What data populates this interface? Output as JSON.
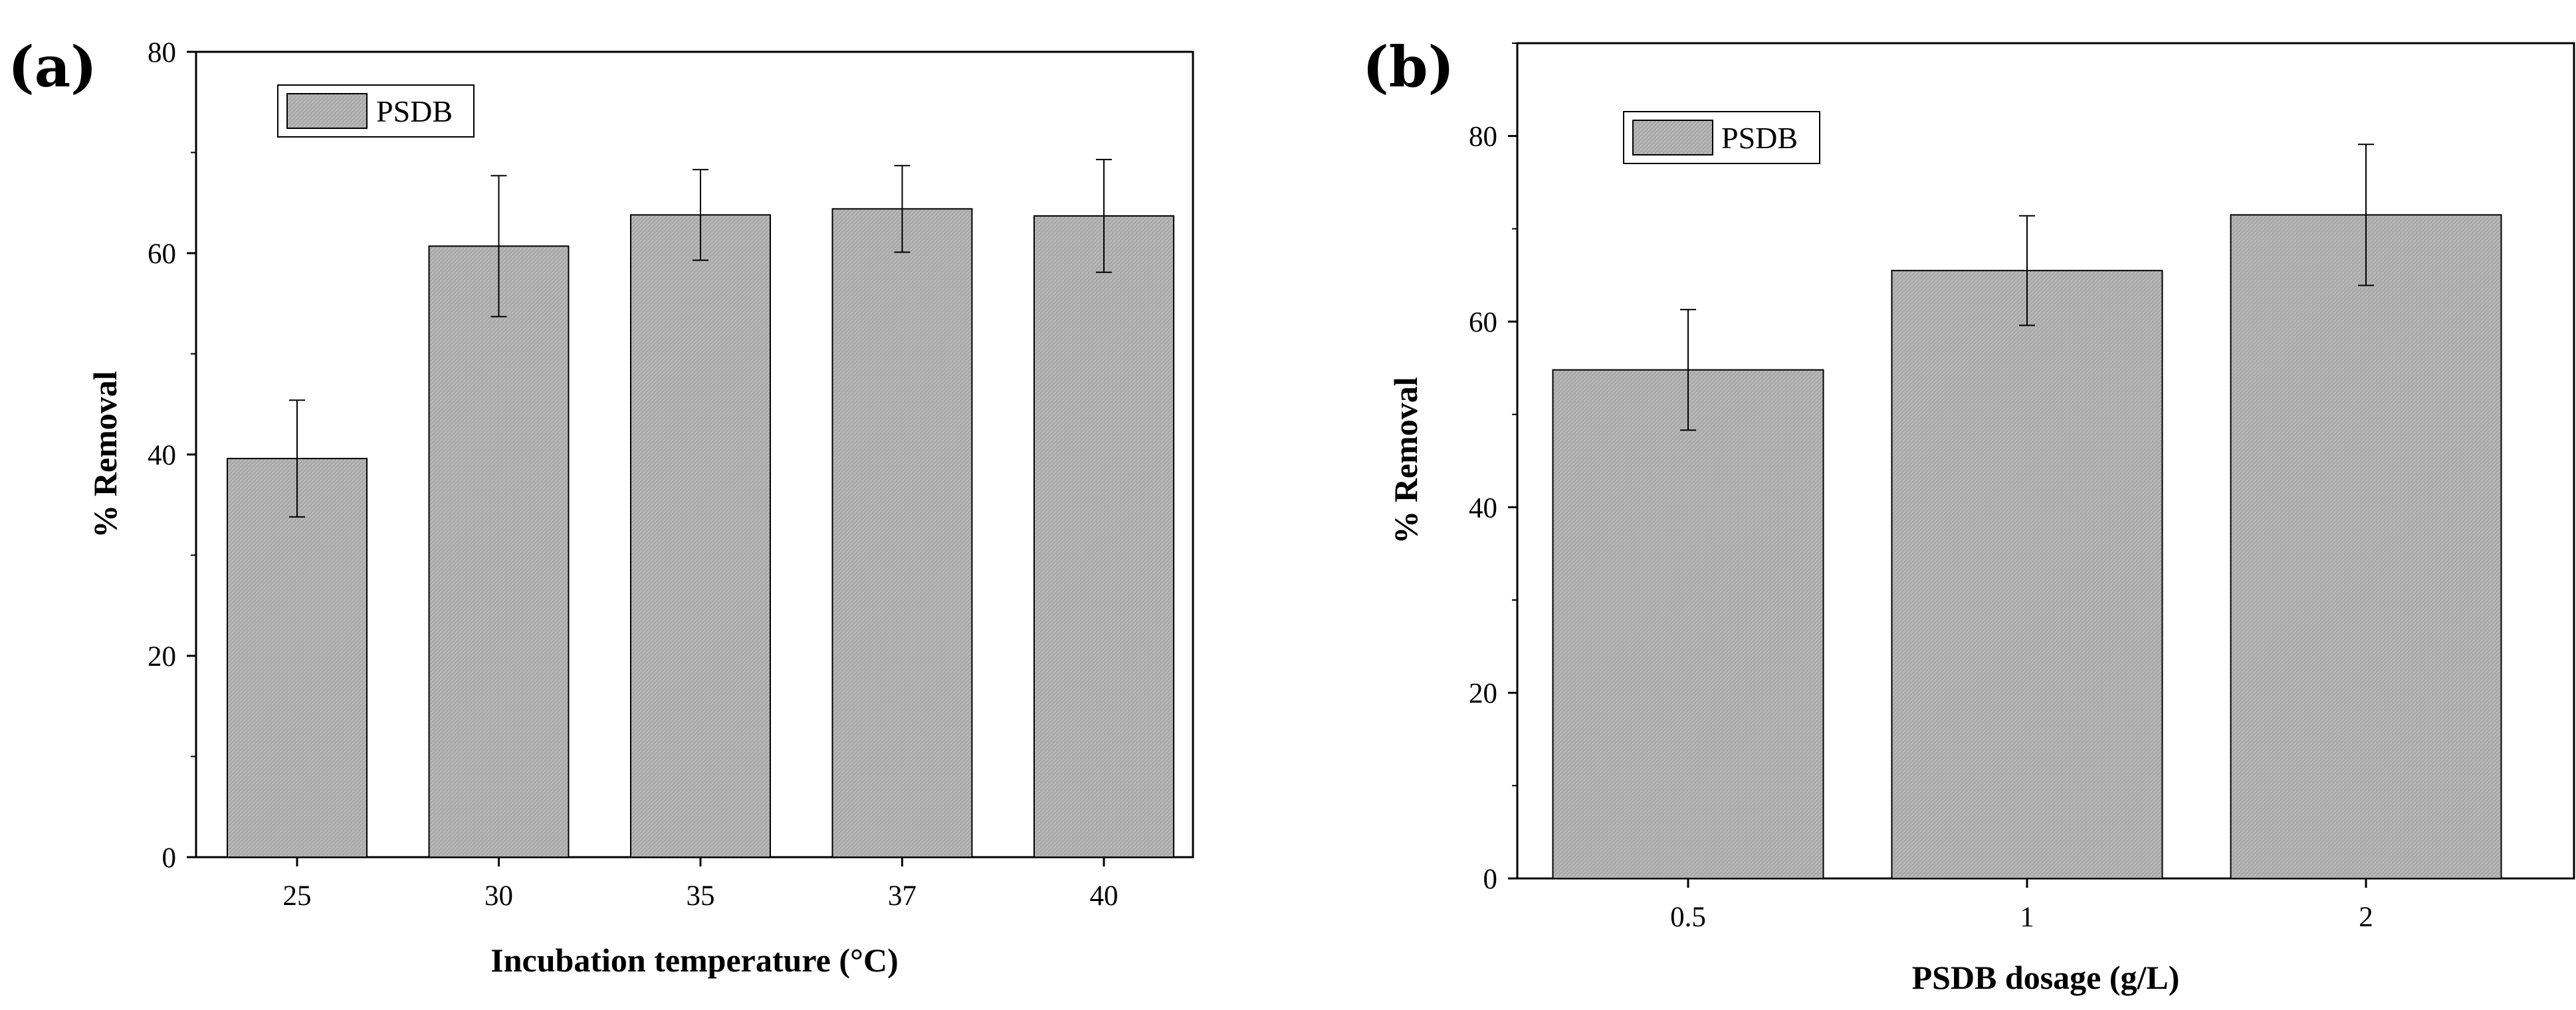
{
  "chart_data": [
    {
      "type": "bar",
      "panel_label": "(a)",
      "categories": [
        "25",
        "30",
        "35",
        "37",
        "40"
      ],
      "series": [
        {
          "name": "PSDB",
          "values": [
            39.6,
            60.7,
            63.8,
            64.4,
            63.7
          ],
          "errors": [
            5.8,
            7.0,
            4.5,
            4.3,
            5.6
          ]
        }
      ],
      "legend": "PSDB",
      "xlabel": "Incubation temperature (°C)",
      "ylabel": "% Removal",
      "ylim": [
        0,
        80
      ],
      "yticks": [
        0,
        20,
        40,
        60,
        80
      ],
      "legend_position": "top-left",
      "grid": false,
      "bar_color": "#a9a9a9"
    },
    {
      "type": "bar",
      "panel_label": "(b)",
      "categories": [
        "0.5",
        "1",
        "2"
      ],
      "series": [
        {
          "name": "PSDB",
          "values": [
            54.8,
            65.5,
            71.5
          ],
          "errors": [
            6.5,
            5.9,
            7.6
          ]
        }
      ],
      "legend": "PSDB",
      "xlabel": "PSDB dosage (g/L)",
      "ylabel": "% Removal",
      "ylim": [
        0,
        90
      ],
      "yticks": [
        0,
        20,
        40,
        60,
        80
      ],
      "legend_position": "top-left",
      "grid": false,
      "bar_color": "#a9a9a9"
    }
  ]
}
